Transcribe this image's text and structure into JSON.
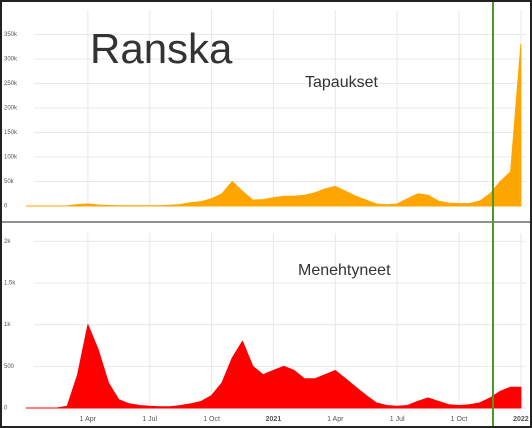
{
  "chart_data": [
    {
      "type": "area",
      "title": "Ranska",
      "series": [
        {
          "name": "Tapaukset",
          "color": "#ffa500",
          "values": [
            0,
            0,
            0,
            0,
            200,
            3000,
            4000,
            2000,
            1000,
            500,
            400,
            400,
            500,
            700,
            1500,
            3000,
            7000,
            9000,
            15000,
            25000,
            50000,
            30000,
            12000,
            13000,
            17000,
            20000,
            20000,
            22000,
            27000,
            35000,
            40000,
            30000,
            20000,
            12000,
            4000,
            2500,
            4000,
            15000,
            25000,
            22000,
            10000,
            6000,
            5000,
            5000,
            10000,
            25000,
            50000,
            70000,
            330000
          ]
        }
      ],
      "ylim": [
        0,
        400000
      ],
      "yticks": [
        0,
        {
          "value": 50000,
          "label": "50k"
        },
        {
          "value": 100000,
          "label": "100k"
        },
        {
          "value": 150000,
          "label": "150k"
        },
        {
          "value": 200000,
          "label": "200k"
        },
        {
          "value": 250000,
          "label": "250k"
        },
        {
          "value": 300000,
          "label": "300k"
        },
        {
          "value": 350000,
          "label": "350k"
        }
      ],
      "grid": true
    },
    {
      "type": "area",
      "categories": [
        null,
        null,
        null,
        null,
        null,
        null,
        "1 Apr",
        null,
        null,
        null,
        null,
        null,
        "1 Jul",
        null,
        null,
        null,
        null,
        null,
        "1 Oct",
        null,
        null,
        null,
        null,
        null,
        "2021",
        null,
        null,
        null,
        null,
        null,
        "1 Apr",
        null,
        null,
        null,
        null,
        null,
        "1 Jul",
        null,
        null,
        null,
        null,
        null,
        "1 Oct",
        null,
        null,
        null,
        null,
        null,
        "2022"
      ],
      "series": [
        {
          "name": "Menehtyneet",
          "color": "#ff0000",
          "values": [
            0,
            0,
            0,
            0,
            20,
            400,
            1000,
            700,
            300,
            100,
            50,
            30,
            20,
            15,
            15,
            30,
            50,
            80,
            150,
            300,
            600,
            800,
            500,
            400,
            450,
            500,
            450,
            350,
            350,
            400,
            450,
            350,
            250,
            150,
            60,
            30,
            20,
            30,
            80,
            120,
            80,
            40,
            30,
            40,
            60,
            120,
            200,
            250,
            250
          ]
        }
      ],
      "ylim": [
        0,
        2100
      ],
      "yticks": [
        0,
        500,
        {
          "value": 1000,
          "label": "1k"
        },
        {
          "value": 1500,
          "label": "1.5k"
        },
        {
          "value": 2000,
          "label": "2k"
        }
      ],
      "grid": true
    }
  ]
}
